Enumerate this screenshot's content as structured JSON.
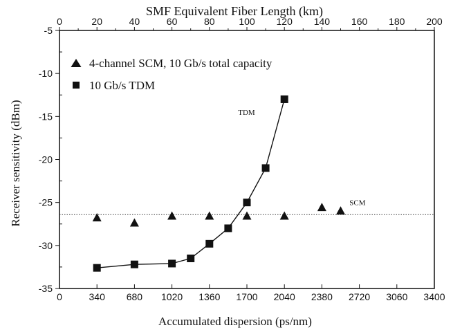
{
  "chart_data": {
    "type": "scatter",
    "top_axis": {
      "label": "SMF Equivalent Fiber Length (km)",
      "range": [
        0,
        200
      ],
      "ticks": [
        0,
        20,
        40,
        60,
        80,
        100,
        120,
        140,
        160,
        180,
        200
      ]
    },
    "x_axis": {
      "label": "Accumulated dispersion (ps/nm)",
      "range": [
        0,
        3400
      ],
      "ticks": [
        0,
        340,
        680,
        1020,
        1360,
        1700,
        2040,
        2380,
        2720,
        3060,
        3400
      ]
    },
    "y_axis": {
      "label": "Receiver sensitivity (dBm)",
      "range": [
        -35,
        -5
      ],
      "ticks": [
        -5,
        -10,
        -15,
        -20,
        -25,
        -30,
        -35
      ]
    },
    "legend": {
      "placement": "top-left",
      "entries": [
        {
          "marker": "triangle",
          "label": "4-channel SCM, 10 Gb/s total capacity"
        },
        {
          "marker": "square",
          "label": "10 Gb/s TDM"
        }
      ]
    },
    "series": [
      {
        "name": "4-channel SCM, 10 Gb/s total capacity",
        "marker": "triangle",
        "connected": false,
        "points": [
          {
            "x": 340,
            "y": -26.8
          },
          {
            "x": 680,
            "y": -27.4
          },
          {
            "x": 1020,
            "y": -26.6
          },
          {
            "x": 1360,
            "y": -26.6
          },
          {
            "x": 1700,
            "y": -26.6
          },
          {
            "x": 2040,
            "y": -26.6
          },
          {
            "x": 2380,
            "y": -25.6
          },
          {
            "x": 2550,
            "y": -26.0
          }
        ]
      },
      {
        "name": "10 Gb/s TDM",
        "marker": "square",
        "connected": true,
        "points": [
          {
            "x": 340,
            "y": -32.6
          },
          {
            "x": 680,
            "y": -32.2
          },
          {
            "x": 1020,
            "y": -32.1
          },
          {
            "x": 1190,
            "y": -31.5
          },
          {
            "x": 1360,
            "y": -29.8
          },
          {
            "x": 1530,
            "y": -28.0
          },
          {
            "x": 1700,
            "y": -25.0
          },
          {
            "x": 1870,
            "y": -21.0
          },
          {
            "x": 2040,
            "y": -13.0
          }
        ]
      }
    ],
    "reference_line": {
      "y": -26.4,
      "style": "dotted"
    },
    "annotations": [
      {
        "text": "TDM",
        "x": 1620,
        "y": -14.8
      },
      {
        "text": "SCM",
        "x": 2630,
        "y": -25.3
      }
    ],
    "grid": false
  }
}
